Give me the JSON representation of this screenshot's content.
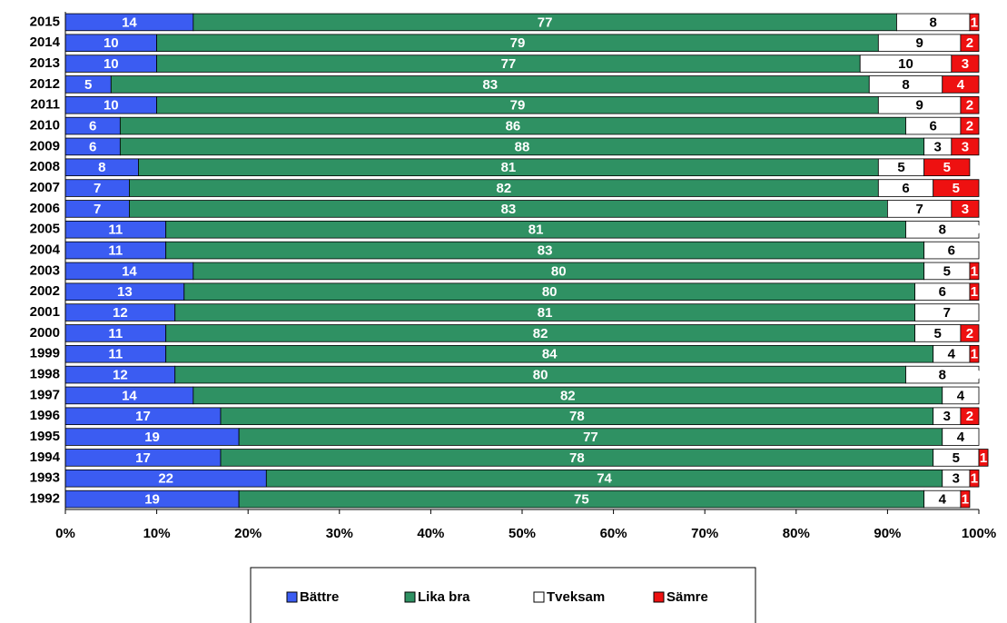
{
  "chart_data": {
    "type": "stacked_barh",
    "categories": [
      "2015",
      "2014",
      "2013",
      "2012",
      "2011",
      "2010",
      "2009",
      "2008",
      "2007",
      "2006",
      "2005",
      "2004",
      "2003",
      "2002",
      "2001",
      "2000",
      "1999",
      "1998",
      "1997",
      "1996",
      "1995",
      "1994",
      "1993",
      "1992"
    ],
    "series": [
      {
        "name": "Bättre",
        "color": "#3b5cf2",
        "values": [
          14,
          10,
          10,
          5,
          10,
          6,
          6,
          8,
          7,
          7,
          11,
          11,
          14,
          13,
          12,
          11,
          11,
          12,
          14,
          17,
          19,
          17,
          22,
          19
        ]
      },
      {
        "name": "Lika bra",
        "color": "#2f9163",
        "values": [
          77,
          79,
          77,
          83,
          79,
          86,
          88,
          81,
          82,
          83,
          81,
          83,
          80,
          80,
          81,
          82,
          84,
          80,
          82,
          78,
          77,
          78,
          74,
          75
        ]
      },
      {
        "name": "Tveksam",
        "color": "#ffffff",
        "values": [
          8,
          9,
          10,
          8,
          9,
          6,
          3,
          5,
          6,
          7,
          8,
          6,
          5,
          6,
          7,
          5,
          4,
          8,
          4,
          3,
          4,
          5,
          3,
          4
        ]
      },
      {
        "name": "Sämre",
        "color": "#ee1111",
        "values": [
          1,
          2,
          3,
          4,
          2,
          2,
          3,
          5,
          5,
          3,
          0,
          null,
          1,
          1,
          null,
          2,
          1,
          0,
          null,
          2,
          null,
          1,
          1,
          1
        ]
      }
    ],
    "xlim": [
      0,
      100
    ],
    "xticks": [
      {
        "value": 0,
        "label": "0%"
      },
      {
        "value": 10,
        "label": "10%"
      },
      {
        "value": 20,
        "label": "20%"
      },
      {
        "value": 30,
        "label": "30%"
      },
      {
        "value": 40,
        "label": "40%"
      },
      {
        "value": 50,
        "label": "50%"
      },
      {
        "value": 60,
        "label": "60%"
      },
      {
        "value": 70,
        "label": "70%"
      },
      {
        "value": 80,
        "label": "80%"
      },
      {
        "value": 90,
        "label": "90%"
      },
      {
        "value": 100,
        "label": "100%"
      }
    ],
    "legend": "bottom"
  }
}
